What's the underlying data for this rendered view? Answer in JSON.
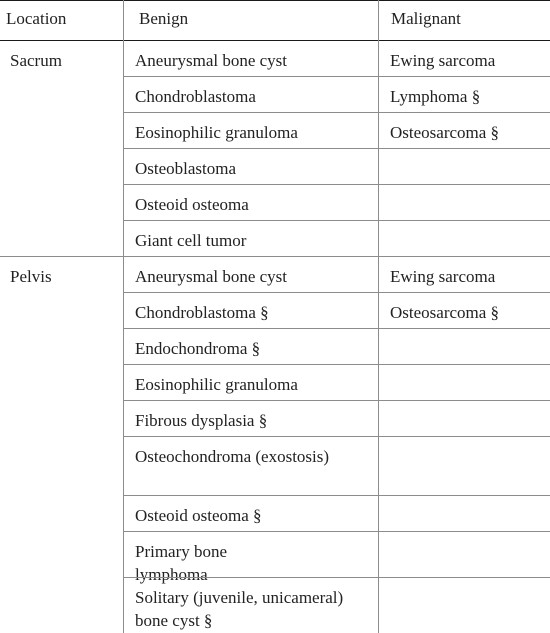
{
  "table": {
    "headers": {
      "location": "Location",
      "benign": "Benign",
      "malignant": "Malignant"
    },
    "groups": [
      {
        "location": "Sacrum",
        "benign": [
          "Aneurysmal bone cyst",
          "Chondroblastoma",
          "Eosinophilic granuloma",
          "Osteoblastoma",
          "Osteoid osteoma",
          "Giant cell tumor"
        ],
        "malignant": [
          "Ewing sarcoma",
          "Lymphoma §",
          "Osteosarcoma §"
        ]
      },
      {
        "location": "Pelvis",
        "benign": [
          "Aneurysmal bone cyst",
          "Chondroblastoma §",
          "Endochondroma §",
          "Eosinophilic granuloma",
          "Fibrous dysplasia §",
          "Osteochondroma (exostosis)",
          "Osteoid osteoma §",
          "Primary bone lymphoma",
          "Solitary (juvenile, unicameral) bone cyst §"
        ],
        "malignant": [
          "Ewing sarcoma",
          "Osteosarcoma §"
        ]
      }
    ]
  }
}
